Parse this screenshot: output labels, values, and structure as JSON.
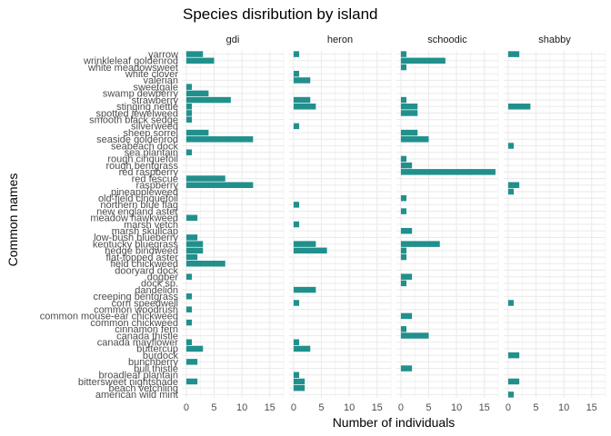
{
  "chart_data": {
    "type": "bar",
    "orientation": "horizontal",
    "title": "Species disribution by island",
    "xlabel": "Number of individuals",
    "ylabel": "Common names",
    "xlim": [
      -0.8,
      17.5
    ],
    "x_ticks": [
      0,
      5,
      10,
      15
    ],
    "grid": true,
    "bar_color": "#21908C",
    "panel_background": "#ffffff",
    "grid_color": "#EBEBEB",
    "categories": [
      "american wild mint",
      "beach vetchling",
      "bittersweet nightshade",
      "broadleaf plantain",
      "bull thistle",
      "bunchberry",
      "burdock",
      "buttercup",
      "canada mayflower",
      "canada thistle",
      "cinnamon fern",
      "common chickweed",
      "common mouse-ear chickweed",
      "common woodrush",
      "corn speedwell",
      "creeping bentgrass",
      "dandelion",
      "dock sp.",
      "dogber",
      "dooryard dock",
      "field chickweed",
      "flat-topped aster",
      "hedge bindweed",
      "kentucky bluegrass",
      "low-bush blueberry",
      "marsh skullcap",
      "marsh vetch",
      "meadow hawkweed",
      "new england aster",
      "northern blue flag",
      "old-field cinquefoil",
      "pineappleweed",
      "raspberry",
      "red fescue",
      "red raspberry",
      "rough bentgrass",
      "rough cinquefoil",
      "sea plantain",
      "seabeach dock",
      "seaside goldenrod",
      "sheep sorrel",
      "silverweed",
      "smooth black sedge",
      "spotted jewelweed",
      "stinging nettle",
      "strawberry",
      "swamp dewberry",
      "sweetgale",
      "valerian",
      "white clover",
      "white meadowsweet",
      "wrinkleleaf goldenrod",
      "yarrow"
    ],
    "panels": [
      {
        "name": "gdi",
        "values": [
          0,
          0,
          2,
          0,
          0,
          2,
          0,
          3,
          1,
          0,
          0,
          1,
          0,
          1,
          0,
          1,
          0,
          0,
          1,
          0,
          7,
          2,
          3,
          3,
          2,
          0,
          0,
          2,
          0,
          0,
          0,
          0,
          12,
          7,
          0,
          0,
          0,
          1,
          0,
          12,
          4,
          0,
          1,
          1,
          1,
          8,
          4,
          1,
          0,
          0,
          0,
          5,
          3
        ]
      },
      {
        "name": "heron",
        "values": [
          0,
          2,
          2,
          1,
          0,
          0,
          0,
          3,
          1,
          0,
          0,
          0,
          0,
          0,
          1,
          0,
          4,
          0,
          0,
          0,
          0,
          0,
          6,
          4,
          0,
          0,
          1,
          0,
          0,
          1,
          0,
          0,
          0,
          0,
          0,
          0,
          0,
          0,
          0,
          0,
          0,
          1,
          0,
          0,
          4,
          3,
          0,
          0,
          3,
          1,
          0,
          0,
          1
        ]
      },
      {
        "name": "schoodic",
        "values": [
          0,
          0,
          0,
          0,
          2,
          0,
          0,
          0,
          0,
          5,
          1,
          0,
          2,
          0,
          0,
          0,
          0,
          1,
          2,
          0,
          0,
          1,
          1,
          7,
          0,
          2,
          0,
          0,
          1,
          0,
          1,
          0,
          0,
          0,
          17,
          2,
          1,
          0,
          0,
          5,
          3,
          0,
          0,
          3,
          3,
          1,
          0,
          0,
          0,
          0,
          1,
          8,
          1
        ]
      },
      {
        "name": "shabby",
        "values": [
          1,
          0,
          2,
          0,
          0,
          0,
          2,
          0,
          0,
          0,
          0,
          0,
          0,
          0,
          1,
          0,
          0,
          0,
          0,
          0,
          0,
          0,
          0,
          0,
          0,
          0,
          0,
          0,
          0,
          0,
          0,
          1,
          2,
          0,
          0,
          0,
          0,
          0,
          1,
          0,
          0,
          0,
          0,
          0,
          4,
          0,
          0,
          0,
          0,
          0,
          0,
          0,
          2
        ]
      }
    ]
  }
}
